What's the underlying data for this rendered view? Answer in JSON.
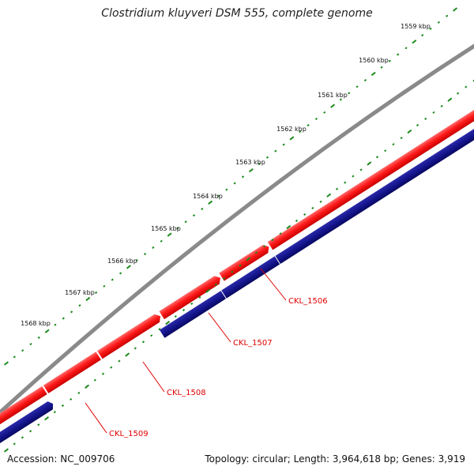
{
  "title": "Clostridium kluyveri DSM 555, complete genome",
  "footer": {
    "accession": "Accession: NC_009706",
    "summary": "Topology: circular; Length: 3,964,618 bp; Genes: 3,919"
  },
  "scale_labels": [
    "1559 kbp",
    "1560 kbp",
    "1561 kbp",
    "1562 kbp",
    "1563 kbp",
    "1564 kbp",
    "1565 kbp",
    "1566 kbp",
    "1567 kbp",
    "1568 kbp"
  ],
  "genes": [
    "CKL_1506",
    "CKL_1507",
    "CKL_1508",
    "CKL_1509"
  ],
  "colors": {
    "backbone": "#8a8a8a",
    "forward_strand": "#ee1111",
    "reverse_strand": "#10108a",
    "ticks": "#1a8a1a",
    "gene_label": "#e00000"
  }
}
